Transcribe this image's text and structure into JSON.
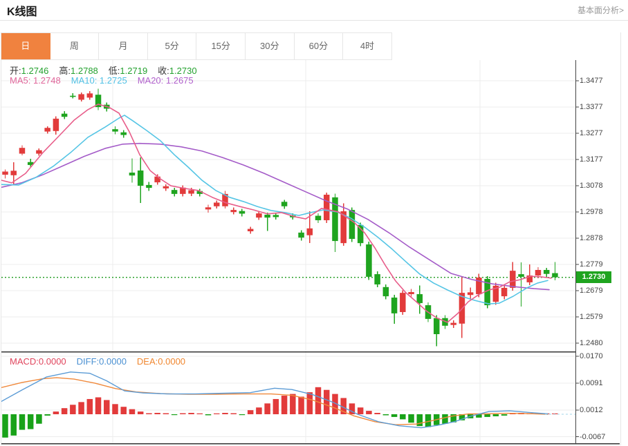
{
  "header": {
    "title": "K线图",
    "link": "基本面分析>"
  },
  "tabs": {
    "items": [
      "日",
      "周",
      "月",
      "5分",
      "15分",
      "30分",
      "60分",
      "4时"
    ],
    "active_index": 0
  },
  "stats": {
    "ohlc": [
      {
        "label": "开:",
        "value": "1.2746"
      },
      {
        "label": "高:",
        "value": "1.2788"
      },
      {
        "label": "低:",
        "value": "1.2719"
      },
      {
        "label": "收:",
        "value": "1.2730"
      }
    ],
    "ohlc_label_color": "#333333",
    "ohlc_value_color": "#23a12e",
    "ma": [
      {
        "label": "MA5: ",
        "value": "1.2748",
        "color": "#e0659a"
      },
      {
        "label": "MA10: ",
        "value": "1.2725",
        "color": "#4fc0e4"
      },
      {
        "label": "MA20: ",
        "value": "1.2675",
        "color": "#b060cc"
      }
    ],
    "macd": [
      {
        "label": "MACD:",
        "value": "0.0000",
        "color": "#e0445c"
      },
      {
        "label": "DIFF:",
        "value": "0.0000",
        "color": "#4a90d2"
      },
      {
        "label": "DEA:",
        "value": "0.0000",
        "color": "#f0862e"
      }
    ]
  },
  "price_badge": "1.2730",
  "colors": {
    "up_candle": "#e23b3b",
    "down_candle": "#1fa41f",
    "ma5": "#e85d8a",
    "ma10": "#55c5e5",
    "ma20": "#a45bc8",
    "diff_line": "#5b9bd5",
    "dea_line": "#f0883a",
    "hist_pos": "#e23b3b",
    "hist_neg": "#19a219",
    "price_line": "#2ca12c",
    "zero_dash": "#a0d4e8",
    "grid": "#ececec",
    "axis": "#444444",
    "dark_line": "#333333",
    "tab_active_bg": "#f0823f"
  },
  "chart_data": {
    "type": "candlestick+macd",
    "main": {
      "y_axis_labels": [
        "1.3477",
        "1.3377",
        "1.3277",
        "1.3177",
        "1.3078",
        "1.2978",
        "1.2878",
        "1.2779",
        "1.2679",
        "1.2579",
        "1.2480"
      ],
      "y_top_value": 1.3477,
      "y_bottom_value": 1.248,
      "price_line_value": 1.273,
      "candles": [
        [
          1.312,
          1.314,
          1.3106,
          1.3132
        ],
        [
          1.3118,
          1.3167,
          1.3084,
          1.3135
        ],
        [
          1.32,
          1.3232,
          1.3193,
          1.3222
        ],
        [
          1.3168,
          1.318,
          1.315,
          1.3157
        ],
        [
          1.32,
          1.322,
          1.3192,
          1.3213
        ],
        [
          1.3284,
          1.3304,
          1.3276,
          1.3298
        ],
        [
          1.3286,
          1.3342,
          1.3272,
          1.3333
        ],
        [
          1.3352,
          1.3362,
          1.3332,
          1.334
        ],
        [
          1.342,
          1.343,
          1.341,
          1.3416
        ],
        [
          1.3405,
          1.3432,
          1.3398,
          1.3426
        ],
        [
          1.3413,
          1.3437,
          1.3405,
          1.3429
        ],
        [
          1.3424,
          1.3447,
          1.3365,
          1.3377
        ],
        [
          1.3386,
          1.3394,
          1.336,
          1.3371
        ],
        [
          1.3293,
          1.3304,
          1.3274,
          1.3284
        ],
        [
          1.3281,
          1.329,
          1.326,
          1.3271
        ],
        [
          1.3128,
          1.3182,
          1.309,
          1.3117
        ],
        [
          1.3136,
          1.3186,
          1.3012,
          1.3078
        ],
        [
          1.3081,
          1.3092,
          1.3058,
          1.307
        ],
        [
          1.3091,
          1.3122,
          1.3082,
          1.3113
        ],
        [
          1.3068,
          1.3084,
          1.3058,
          1.3076
        ],
        [
          1.3062,
          1.307,
          1.3038,
          1.3047
        ],
        [
          1.3047,
          1.308,
          1.3038,
          1.3071
        ],
        [
          1.3048,
          1.307,
          1.3039,
          1.3061
        ],
        [
          1.3058,
          1.3066,
          1.3038,
          1.3047
        ],
        [
          1.2988,
          1.3006,
          1.2976,
          1.2996
        ],
        [
          1.3,
          1.3022,
          1.2991,
          1.3014
        ],
        [
          1.3,
          1.3058,
          1.2991,
          1.3047
        ],
        [
          1.2978,
          1.2995,
          1.2969,
          1.2986
        ],
        [
          1.2982,
          1.299,
          1.2962,
          1.2972
        ],
        [
          1.2905,
          1.2922,
          1.2896,
          1.2914
        ],
        [
          1.2957,
          1.2982,
          1.2948,
          1.2973
        ],
        [
          1.2968,
          1.2976,
          1.2906,
          1.2957
        ],
        [
          1.2967,
          1.2975,
          1.2949,
          1.2959
        ],
        [
          1.3017,
          1.3024,
          1.299,
          1.3
        ],
        [
          1.2965,
          1.2973,
          1.2949,
          1.2958
        ],
        [
          1.29,
          1.2909,
          1.287,
          1.2881
        ],
        [
          1.289,
          1.2981,
          1.286,
          1.2916
        ],
        [
          1.2964,
          1.2973,
          1.2936,
          1.2947
        ],
        [
          1.2947,
          1.3052,
          1.2937,
          1.3044
        ],
        [
          1.3034,
          1.3048,
          1.2826,
          1.2868
        ],
        [
          1.286,
          1.3011,
          1.285,
          1.2981
        ],
        [
          1.2986,
          1.2996,
          1.2864,
          1.2876
        ],
        [
          1.2929,
          1.2938,
          1.2849,
          1.286
        ],
        [
          1.2855,
          1.2866,
          1.272,
          1.2732
        ],
        [
          1.2742,
          1.2753,
          1.2692,
          1.2703
        ],
        [
          1.2693,
          1.2703,
          1.2646,
          1.2658
        ],
        [
          1.2653,
          1.2663,
          1.2553,
          1.2593
        ],
        [
          1.2598,
          1.2681,
          1.2588,
          1.2671
        ],
        [
          1.2666,
          1.2686,
          1.2653,
          1.2674
        ],
        [
          1.2666,
          1.2699,
          1.2592,
          1.2632
        ],
        [
          1.2624,
          1.2635,
          1.256,
          1.2572
        ],
        [
          1.2575,
          1.2586,
          1.2468,
          1.2514
        ],
        [
          1.2575,
          1.2586,
          1.2534,
          1.2546
        ],
        [
          1.2549,
          1.2567,
          1.2538,
          1.2557
        ],
        [
          1.2554,
          1.273,
          1.25,
          1.2671
        ],
        [
          1.2663,
          1.2691,
          1.2649,
          1.2673
        ],
        [
          1.2666,
          1.2744,
          1.2655,
          1.2729
        ],
        [
          1.2724,
          1.2735,
          1.2612,
          1.2624
        ],
        [
          1.2637,
          1.271,
          1.2626,
          1.2698
        ],
        [
          1.2658,
          1.2702,
          1.2647,
          1.269
        ],
        [
          1.269,
          1.2788,
          1.2679,
          1.2755
        ],
        [
          1.2742,
          1.2787,
          1.2619,
          1.2732
        ],
        [
          1.2711,
          1.2779,
          1.27,
          1.2737
        ],
        [
          1.2737,
          1.2769,
          1.2726,
          1.2758
        ],
        [
          1.2758,
          1.2766,
          1.2731,
          1.2743
        ],
        [
          1.2746,
          1.2788,
          1.2719,
          1.273
        ]
      ],
      "ma5": [
        [
          0,
          1.3099
        ],
        [
          15,
          1.3089
        ],
        [
          35,
          1.3125
        ],
        [
          60,
          1.3204
        ],
        [
          85,
          1.3272
        ],
        [
          105,
          1.3327
        ],
        [
          125,
          1.3367
        ],
        [
          140,
          1.3388
        ],
        [
          155,
          1.3377
        ],
        [
          170,
          1.3354
        ],
        [
          185,
          1.3283
        ],
        [
          200,
          1.3196
        ],
        [
          215,
          1.3136
        ],
        [
          230,
          1.3104
        ],
        [
          245,
          1.3078
        ],
        [
          265,
          1.3068
        ],
        [
          285,
          1.306
        ],
        [
          305,
          1.3034
        ],
        [
          325,
          1.3013
        ],
        [
          345,
          1.2999
        ],
        [
          365,
          1.2986
        ],
        [
          385,
          1.2971
        ],
        [
          405,
          1.2976
        ],
        [
          425,
          1.296
        ],
        [
          440,
          1.2952
        ],
        [
          463,
          1.2992
        ],
        [
          487,
          1.2979
        ],
        [
          510,
          1.2939
        ],
        [
          525,
          1.29
        ],
        [
          540,
          1.2842
        ],
        [
          555,
          1.2776
        ],
        [
          570,
          1.2716
        ],
        [
          585,
          1.2671
        ],
        [
          600,
          1.2637
        ],
        [
          615,
          1.2601
        ],
        [
          630,
          1.2575
        ],
        [
          645,
          1.2559
        ],
        [
          660,
          1.2593
        ],
        [
          675,
          1.2637
        ],
        [
          690,
          1.2664
        ],
        [
          705,
          1.2682
        ],
        [
          720,
          1.2692
        ],
        [
          735,
          1.2713
        ],
        [
          750,
          1.2721
        ],
        [
          765,
          1.2734
        ],
        [
          780,
          1.2732
        ],
        [
          795,
          1.2727
        ]
      ],
      "ma10": [
        [
          0,
          1.3083
        ],
        [
          25,
          1.3081
        ],
        [
          50,
          1.311
        ],
        [
          75,
          1.3152
        ],
        [
          100,
          1.3204
        ],
        [
          125,
          1.3262
        ],
        [
          150,
          1.3301
        ],
        [
          170,
          1.3335
        ],
        [
          178,
          1.3346
        ],
        [
          190,
          1.3325
        ],
        [
          210,
          1.3288
        ],
        [
          230,
          1.3249
        ],
        [
          250,
          1.3196
        ],
        [
          270,
          1.3149
        ],
        [
          290,
          1.3099
        ],
        [
          310,
          1.306
        ],
        [
          330,
          1.3034
        ],
        [
          350,
          1.3018
        ],
        [
          370,
          1.2999
        ],
        [
          390,
          1.2984
        ],
        [
          410,
          1.2976
        ],
        [
          430,
          1.2965
        ],
        [
          447,
          1.2976
        ],
        [
          465,
          1.2986
        ],
        [
          485,
          1.2979
        ],
        [
          505,
          1.2955
        ],
        [
          525,
          1.2921
        ],
        [
          545,
          1.2881
        ],
        [
          565,
          1.2837
        ],
        [
          585,
          1.2789
        ],
        [
          605,
          1.2742
        ],
        [
          625,
          1.2708
        ],
        [
          645,
          1.2682
        ],
        [
          665,
          1.2658
        ],
        [
          685,
          1.2642
        ],
        [
          705,
          1.2629
        ],
        [
          720,
          1.2632
        ],
        [
          740,
          1.2658
        ],
        [
          760,
          1.269
        ],
        [
          775,
          1.2708
        ],
        [
          790,
          1.2718
        ]
      ],
      "ma20": [
        [
          0,
          1.3072
        ],
        [
          30,
          1.309
        ],
        [
          60,
          1.312
        ],
        [
          90,
          1.3155
        ],
        [
          120,
          1.319
        ],
        [
          150,
          1.322
        ],
        [
          175,
          1.3236
        ],
        [
          200,
          1.3239
        ],
        [
          230,
          1.3236
        ],
        [
          260,
          1.3226
        ],
        [
          290,
          1.321
        ],
        [
          320,
          1.3185
        ],
        [
          350,
          1.3157
        ],
        [
          380,
          1.3125
        ],
        [
          410,
          1.309
        ],
        [
          440,
          1.3055
        ],
        [
          470,
          1.302
        ],
        [
          500,
          1.299
        ],
        [
          530,
          1.295
        ],
        [
          560,
          1.29
        ],
        [
          590,
          1.2845
        ],
        [
          620,
          1.2795
        ],
        [
          650,
          1.2745
        ],
        [
          680,
          1.2722
        ],
        [
          710,
          1.2705
        ],
        [
          740,
          1.2695
        ],
        [
          770,
          1.2687
        ],
        [
          792,
          1.2683
        ]
      ]
    },
    "macd": {
      "y_axis_labels": [
        "0.0170",
        "0.0091",
        "0.0012",
        "-0.0067"
      ],
      "histogram": [
        -0.0069,
        -0.0063,
        -0.0046,
        -0.0044,
        -0.0028,
        -0.0004,
        0.0008,
        0.0018,
        0.0028,
        0.0036,
        0.0045,
        0.005,
        0.0042,
        0.003,
        0.0022,
        0.0015,
        0.0008,
        0.0003,
        0.0004,
        0.0003,
        -0.0002,
        0.0003,
        0.0004,
        0.0002,
        -0.0003,
        0.0002,
        0.0004,
        0.0003,
        -0.0002,
        0.0012,
        0.002,
        0.0032,
        0.0045,
        0.0055,
        0.006,
        0.0052,
        0.0065,
        0.008,
        0.0072,
        0.006,
        0.0048,
        0.0032,
        0.002,
        0.001,
        0.0004,
        -0.0003,
        -0.0008,
        -0.0015,
        -0.0025,
        -0.0035,
        -0.0038,
        -0.0032,
        -0.0028,
        -0.0024,
        -0.0018,
        -0.0012,
        -0.001,
        -0.0008,
        -0.0006,
        -0.0004,
        0.0003,
        0.0004,
        0.0003,
        0.0002,
        0.0002,
        0.0001
      ],
      "diff": [
        [
          0,
          0.0038
        ],
        [
          30,
          0.0072
        ],
        [
          65,
          0.011
        ],
        [
          100,
          0.0125
        ],
        [
          128,
          0.0121
        ],
        [
          152,
          0.0099
        ],
        [
          178,
          0.0069
        ],
        [
          205,
          0.0063
        ],
        [
          240,
          0.006
        ],
        [
          280,
          0.006
        ],
        [
          320,
          0.0062
        ],
        [
          360,
          0.0064
        ],
        [
          395,
          0.0077
        ],
        [
          420,
          0.0073
        ],
        [
          450,
          0.0058
        ],
        [
          480,
          0.0035
        ],
        [
          515,
          0.0
        ],
        [
          545,
          -0.0022
        ],
        [
          575,
          -0.0034
        ],
        [
          607,
          -0.004
        ],
        [
          630,
          -0.0033
        ],
        [
          655,
          -0.0022
        ],
        [
          680,
          -0.0005
        ],
        [
          705,
          0.0008
        ],
        [
          735,
          0.001
        ],
        [
          765,
          0.0005
        ],
        [
          790,
          0.0001
        ]
      ],
      "dea": [
        [
          0,
          0.0079
        ],
        [
          30,
          0.0094
        ],
        [
          60,
          0.0105
        ],
        [
          80,
          0.0108
        ],
        [
          105,
          0.0104
        ],
        [
          135,
          0.0092
        ],
        [
          165,
          0.0076
        ],
        [
          195,
          0.0066
        ],
        [
          230,
          0.0061
        ],
        [
          270,
          0.0059
        ],
        [
          310,
          0.0059
        ],
        [
          350,
          0.006
        ],
        [
          390,
          0.006
        ],
        [
          420,
          0.0056
        ],
        [
          450,
          0.0042
        ],
        [
          480,
          0.002
        ],
        [
          510,
          -0.0005
        ],
        [
          540,
          -0.0022
        ],
        [
          570,
          -0.0031
        ],
        [
          600,
          -0.0029
        ],
        [
          625,
          -0.0018
        ],
        [
          650,
          -0.0006
        ],
        [
          675,
          0.0001
        ],
        [
          700,
          0.0001
        ],
        [
          730,
          0.0003
        ],
        [
          760,
          0.0002
        ],
        [
          790,
          0.0
        ]
      ]
    }
  }
}
